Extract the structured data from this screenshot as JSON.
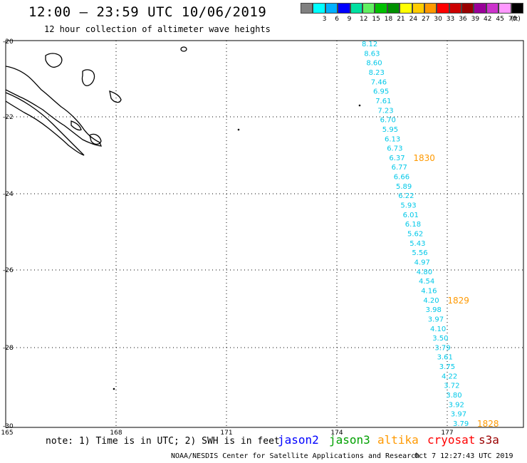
{
  "header": {
    "title": "12:00 – 23:59 UTC 10/06/2019",
    "subtitle": "12 hour collection of altimeter wave heights"
  },
  "legend": {
    "unit_label": "(ft)",
    "bins": [
      {
        "label": "",
        "color": "#808080"
      },
      {
        "label": "3",
        "color": "#00ffff"
      },
      {
        "label": "6",
        "color": "#00b0ff"
      },
      {
        "label": "9",
        "color": "#0000ff"
      },
      {
        "label": "12",
        "color": "#00e0a0"
      },
      {
        "label": "15",
        "color": "#60f060"
      },
      {
        "label": "18",
        "color": "#00c000"
      },
      {
        "label": "21",
        "color": "#009000"
      },
      {
        "label": "24",
        "color": "#ffff00"
      },
      {
        "label": "27",
        "color": "#ffcc00"
      },
      {
        "label": "30",
        "color": "#ff9900"
      },
      {
        "label": "33",
        "color": "#ff0000"
      },
      {
        "label": "36",
        "color": "#cc0000"
      },
      {
        "label": "39",
        "color": "#990000"
      },
      {
        "label": "42",
        "color": "#990099"
      },
      {
        "label": "45",
        "color": "#cc33cc"
      },
      {
        "label": "70",
        "color": "#ff99ff"
      },
      {
        "label": "",
        "color": "#000000"
      }
    ]
  },
  "map": {
    "lon_labels": [
      "165",
      "168",
      "171",
      "174",
      "177"
    ],
    "lat_labels": [
      "-20",
      "-22",
      "-24",
      "-26",
      "-28",
      "-30"
    ],
    "track_color": "#00c8e8",
    "time_color": "#ff9900",
    "swh_values": [
      "8.12",
      "8.63",
      "8.60",
      "8.23",
      "7.46",
      "6.95",
      "7.61",
      "7.23",
      "6.70",
      "5.95",
      "6.13",
      "6.73",
      "6.37",
      "6.77",
      "6.66",
      "5.89",
      "6.22",
      "5.93",
      "6.01",
      "6.18",
      "5.62",
      "5.43",
      "5.56",
      "4.97",
      "4.80",
      "4.54",
      "4.16",
      "4.20",
      "3.98",
      "3.97",
      "4.10",
      "3.50",
      "3.79",
      "3.61",
      "3.75",
      "4.22",
      "3.72",
      "3.80",
      "3.92",
      "3.97",
      "3.79"
    ],
    "time_labels": [
      {
        "text": "1830",
        "after_index": 12
      },
      {
        "text": "1829",
        "after_index": 27
      },
      {
        "text": "1828",
        "after_index": 40
      }
    ]
  },
  "footer": {
    "note": "note: 1) Time is in UTC; 2) SWH is in feet",
    "satellites": [
      {
        "name": "jason2",
        "color": "#0000ff"
      },
      {
        "name": "jason3",
        "color": "#00a000"
      },
      {
        "name": "altika",
        "color": "#ff9900"
      },
      {
        "name": "cryosat",
        "color": "#ff0000"
      },
      {
        "name": "s3a",
        "color": "#990000"
      }
    ],
    "credit": "NOAA/NESDIS Center for Satellite Applications and Research",
    "generated": "Oct  7 12:27:43 UTC 2019"
  }
}
